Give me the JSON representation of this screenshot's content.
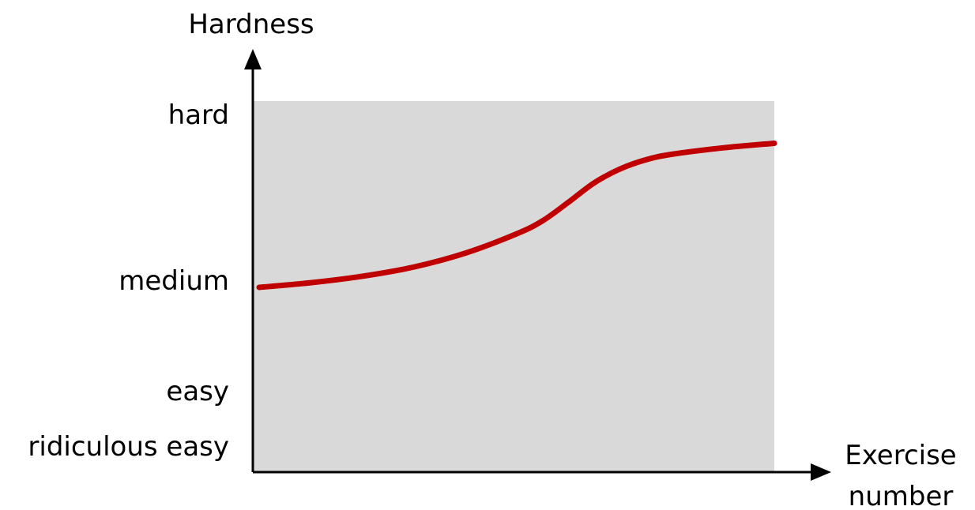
{
  "chart_data": {
    "type": "line",
    "title": "",
    "ylabel": "Hardness",
    "xlabel_lines": [
      "Exercise",
      "number"
    ],
    "y_ticks": [
      {
        "label": "hard",
        "value": 3
      },
      {
        "label": "medium",
        "value": 2
      },
      {
        "label": "easy",
        "value": 1
      },
      {
        "label": "ridiculous easy",
        "value": 0.5
      }
    ],
    "x": [
      0,
      0.1,
      0.2,
      0.3,
      0.4,
      0.5,
      0.55,
      0.6,
      0.65,
      0.7,
      0.75,
      0.8,
      0.9,
      1.0
    ],
    "y": [
      2.0,
      2.05,
      2.12,
      2.22,
      2.37,
      2.58,
      2.72,
      2.92,
      3.13,
      3.28,
      3.38,
      3.44,
      3.51,
      3.56
    ],
    "xlim": [
      0,
      1
    ],
    "ylim": [
      0,
      3.5
    ],
    "grid": false,
    "colors": {
      "line": "#c00000",
      "plot_background": "#d9d9d9",
      "axis": "#000000"
    }
  }
}
